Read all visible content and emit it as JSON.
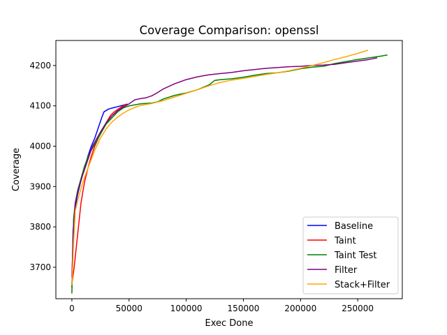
{
  "chart_data": {
    "type": "line",
    "title": "Coverage Comparison: openssl",
    "xlabel": "Exec Done",
    "ylabel": "Coverage",
    "xlim": [
      -14000,
      289000
    ],
    "ylim": [
      3622,
      4262
    ],
    "xticks": [
      0,
      50000,
      100000,
      150000,
      200000,
      250000
    ],
    "yticks": [
      3700,
      3800,
      3900,
      4000,
      4100,
      4200
    ],
    "grid": false,
    "legend_position": "lower right",
    "series": [
      {
        "name": "Baseline",
        "color": "#0000ff",
        "x": [
          0,
          1000,
          3000,
          5000,
          8000,
          11000,
          14000,
          17000,
          20000,
          23000,
          26000,
          28000,
          32000,
          36000,
          40000,
          44000,
          47000,
          49000
        ],
        "y": [
          3650,
          3790,
          3850,
          3880,
          3915,
          3945,
          3975,
          4000,
          4020,
          4045,
          4070,
          4085,
          4092,
          4095,
          4098,
          4101,
          4103,
          4104
        ]
      },
      {
        "name": "Taint",
        "color": "#ff0000",
        "x": [
          0,
          2000,
          5000,
          8000,
          11000,
          14000,
          17000,
          20000,
          24000,
          28000,
          31000,
          34000,
          37000,
          41000,
          45000,
          48000
        ],
        "y": [
          3660,
          3700,
          3780,
          3860,
          3910,
          3945,
          3975,
          4000,
          4025,
          4048,
          4063,
          4077,
          4085,
          4093,
          4100,
          4105
        ]
      },
      {
        "name": "Taint Test",
        "color": "#008000",
        "x": [
          0,
          1500,
          3000,
          5000,
          8000,
          11000,
          15000,
          20000,
          25000,
          30000,
          35000,
          40000,
          45000,
          50000,
          60000,
          70000,
          75000,
          80000,
          90000,
          100000,
          110000,
          120000,
          125000,
          130000,
          140000,
          150000,
          160000,
          170000,
          180000,
          190000,
          200000,
          210000,
          220000,
          230000,
          240000,
          250000,
          260000,
          270000,
          276000
        ],
        "y": [
          3635,
          3820,
          3860,
          3890,
          3920,
          3950,
          3980,
          4005,
          4030,
          4055,
          4070,
          4085,
          4095,
          4100,
          4105,
          4107,
          4110,
          4117,
          4126,
          4132,
          4140,
          4152,
          4163,
          4165,
          4167,
          4171,
          4176,
          4180,
          4182,
          4186,
          4192,
          4196,
          4198,
          4205,
          4210,
          4215,
          4219,
          4223,
          4226
        ]
      },
      {
        "name": "Filter",
        "color": "#800080",
        "x": [
          0,
          1500,
          3000,
          6000,
          9000,
          12000,
          15000,
          18000,
          22000,
          26000,
          30000,
          35000,
          40000,
          45000,
          50000,
          55000,
          60000,
          65000,
          70000,
          75000,
          80000,
          90000,
          100000,
          110000,
          120000,
          130000,
          140000,
          150000,
          160000,
          170000,
          180000,
          190000,
          200000,
          210000,
          220000,
          230000,
          240000,
          250000,
          260000,
          267000
        ],
        "y": [
          3675,
          3800,
          3860,
          3895,
          3925,
          3950,
          3975,
          4000,
          4020,
          4040,
          4058,
          4075,
          4088,
          4097,
          4105,
          4115,
          4118,
          4120,
          4125,
          4133,
          4142,
          4155,
          4165,
          4172,
          4177,
          4180,
          4183,
          4187,
          4190,
          4193,
          4195,
          4197,
          4198,
          4200,
          4201,
          4203,
          4207,
          4211,
          4215,
          4219
        ]
      },
      {
        "name": "Stack+Filter",
        "color": "#ffa500",
        "x": [
          0,
          1500,
          3000,
          6000,
          9000,
          12000,
          16000,
          20000,
          25000,
          30000,
          35000,
          40000,
          45000,
          50000,
          55000,
          60000,
          70000,
          80000,
          90000,
          100000,
          110000,
          120000,
          130000,
          140000,
          150000,
          160000,
          170000,
          180000,
          190000,
          200000,
          210000,
          220000,
          230000,
          240000,
          250000,
          259000
        ],
        "y": [
          3655,
          3760,
          3840,
          3875,
          3905,
          3930,
          3960,
          3990,
          4020,
          4043,
          4060,
          4072,
          4082,
          4090,
          4096,
          4101,
          4106,
          4113,
          4122,
          4131,
          4140,
          4150,
          4158,
          4164,
          4168,
          4173,
          4178,
          4182,
          4187,
          4193,
          4200,
          4207,
          4215,
          4222,
          4230,
          4238
        ]
      }
    ]
  }
}
